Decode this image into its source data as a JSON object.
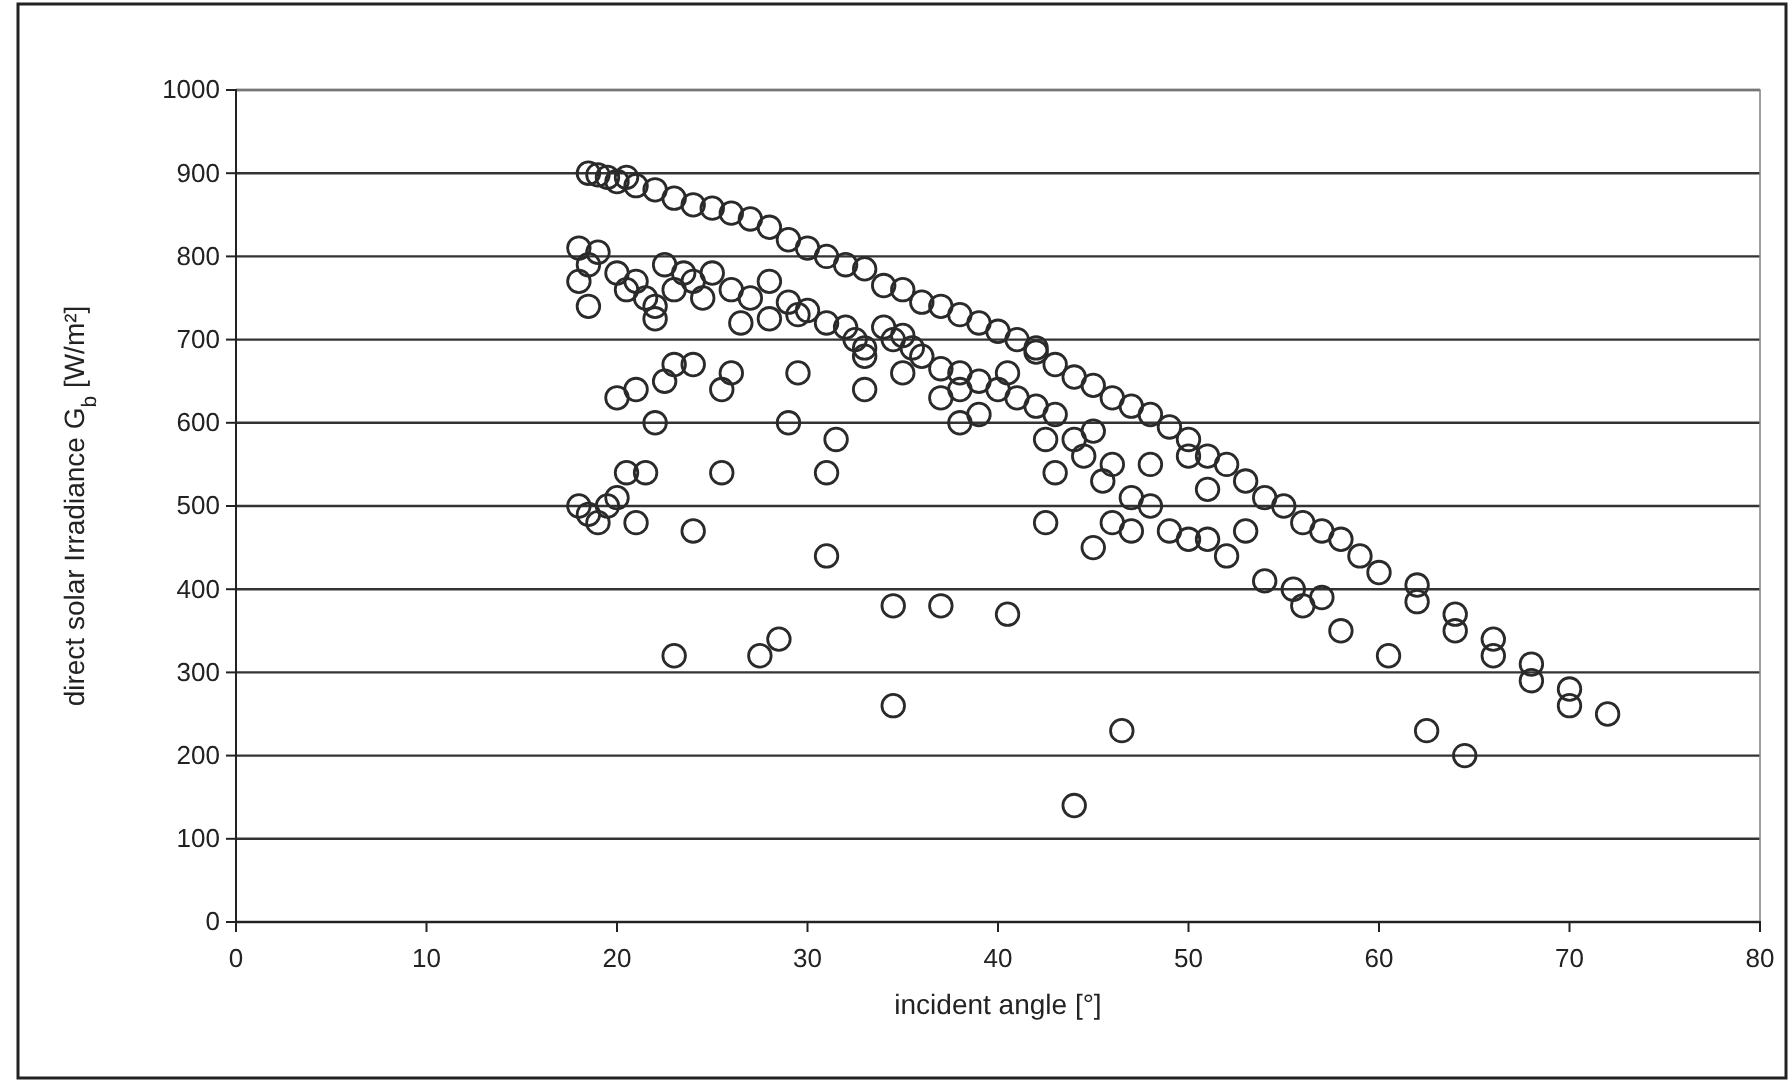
{
  "chart_data": {
    "type": "scatter",
    "xlabel": "incident angle [°]",
    "ylabel": "direct solar Irradiance G$_{b}$ [W/m²]",
    "xlim": [
      0,
      80
    ],
    "xticks": [
      0,
      10,
      20,
      30,
      40,
      50,
      60,
      70,
      80
    ],
    "ylim": [
      0,
      1000
    ],
    "yticks": [
      0,
      100,
      200,
      300,
      400,
      500,
      600,
      700,
      800,
      900,
      1000
    ],
    "grid": "y",
    "marker": "circle",
    "series": [
      {
        "color": "#2a2a2a",
        "x": [
          18.5,
          19,
          19.5,
          20,
          20.5,
          21,
          22,
          23,
          24,
          25,
          26,
          27,
          28,
          29,
          30,
          31,
          32,
          33,
          34,
          35,
          36,
          37,
          38,
          39,
          40,
          41,
          42,
          43,
          44,
          45,
          46,
          47,
          48,
          49,
          50,
          51,
          52,
          53,
          54,
          55,
          56,
          57,
          58,
          59,
          60,
          62,
          62,
          64,
          64,
          66,
          66,
          68,
          68,
          70,
          70,
          72,
          18,
          18.5,
          18,
          19,
          18.5,
          20,
          20.5,
          21,
          21.5,
          22,
          22,
          22.5,
          23,
          23.5,
          24,
          24.5,
          25,
          26,
          26.5,
          27,
          28,
          28,
          29,
          29.5,
          30,
          31,
          32,
          32.5,
          33,
          33,
          34,
          34.5,
          35,
          35.5,
          36,
          37,
          37,
          38,
          38,
          39,
          39,
          40,
          40.5,
          41,
          42,
          42.5,
          43,
          44,
          44.5,
          45,
          45.5,
          46,
          47,
          48,
          49,
          50,
          51,
          52,
          53,
          54,
          56,
          57,
          18,
          18.5,
          19,
          19.5,
          20,
          20,
          21,
          20.5,
          21,
          21.5,
          22,
          22.5,
          23,
          24,
          24,
          23,
          25.5,
          25.5,
          26,
          27.5,
          28.5,
          29,
          29.5,
          31,
          31,
          31.5,
          33,
          34.5,
          34.5,
          35,
          37,
          38,
          40.5,
          42.5,
          43,
          44,
          45,
          46.5,
          46,
          47,
          48,
          50,
          51,
          55.5,
          58,
          60.5,
          62.5,
          64.5,
          42
        ],
        "values": [
          900,
          898,
          895,
          890,
          895,
          885,
          880,
          870,
          862,
          858,
          852,
          845,
          835,
          820,
          810,
          800,
          790,
          785,
          765,
          760,
          745,
          740,
          730,
          720,
          710,
          700,
          685,
          670,
          655,
          645,
          630,
          620,
          610,
          595,
          580,
          560,
          550,
          530,
          510,
          500,
          480,
          470,
          460,
          440,
          420,
          405,
          385,
          370,
          350,
          340,
          320,
          310,
          290,
          280,
          260,
          250,
          810,
          790,
          770,
          805,
          740,
          780,
          760,
          770,
          750,
          740,
          725,
          790,
          760,
          780,
          770,
          750,
          780,
          760,
          720,
          750,
          770,
          725,
          745,
          730,
          735,
          720,
          715,
          700,
          690,
          680,
          715,
          700,
          705,
          690,
          680,
          665,
          630,
          660,
          640,
          650,
          610,
          640,
          660,
          630,
          620,
          580,
          610,
          580,
          560,
          590,
          530,
          550,
          510,
          500,
          470,
          460,
          460,
          440,
          470,
          410,
          380,
          390,
          500,
          490,
          480,
          500,
          510,
          630,
          640,
          540,
          480,
          540,
          600,
          650,
          670,
          670,
          470,
          320,
          540,
          640,
          660,
          320,
          340,
          600,
          660,
          540,
          440,
          580,
          640,
          380,
          260,
          660,
          380,
          600,
          370,
          480,
          540,
          140,
          450,
          230,
          480,
          470,
          550,
          560,
          520,
          400,
          350,
          320,
          230,
          200,
          690
        ]
      }
    ]
  }
}
